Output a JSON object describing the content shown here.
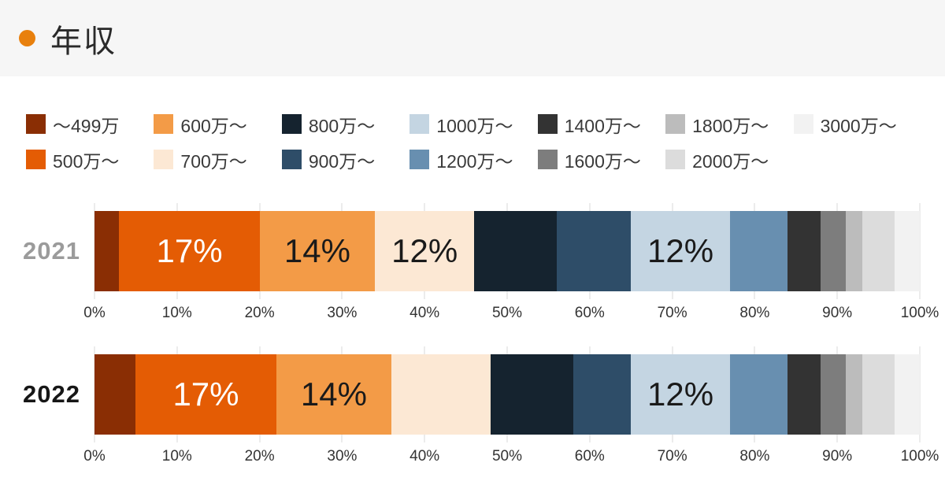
{
  "header": {
    "title": "年収"
  },
  "colors": {
    "accent_dot": "#e8800d",
    "header_bg": "#f6f6f6",
    "page_bg": "#ffffff",
    "gridline": "#ececec",
    "axis_text": "#333333",
    "legend_text": "#3a3a3a",
    "bar_label_dark": "#1a1a1a",
    "bar_label_light": "#ffffff"
  },
  "chart_data": {
    "type": "bar",
    "variant": "stacked-horizontal-percent",
    "title": "年収",
    "legend_position": "top",
    "grid": true,
    "xlim": [
      0,
      100
    ],
    "x_ticks": [
      "0%",
      "10%",
      "20%",
      "30%",
      "40%",
      "50%",
      "60%",
      "70%",
      "80%",
      "90%",
      "100%"
    ],
    "categories": [
      "〜499万",
      "500万〜",
      "600万〜",
      "700万〜",
      "800万〜",
      "900万〜",
      "1000万〜",
      "1200万〜",
      "1400万〜",
      "1600万〜",
      "1800万〜",
      "2000万〜",
      "3000万〜"
    ],
    "colors": [
      "#8a2e04",
      "#e45c04",
      "#f39b47",
      "#fce8d4",
      "#15232f",
      "#2e4d68",
      "#c4d5e2",
      "#688fb0",
      "#333333",
      "#7d7d7d",
      "#bcbcbc",
      "#dcdcdc",
      "#f2f2f2"
    ],
    "series": [
      {
        "name": "2021",
        "name_color": "#9b9b9b",
        "values": [
          3,
          17,
          14,
          12,
          10,
          9,
          12,
          7,
          4,
          3,
          2,
          4,
          3
        ],
        "bar_labels": [
          "",
          "17%",
          "14%",
          "12%",
          "",
          "",
          "12%",
          "",
          "",
          "",
          "",
          "",
          ""
        ]
      },
      {
        "name": "2022",
        "name_color": "#161616",
        "values": [
          5,
          17,
          14,
          12,
          10,
          7,
          12,
          7,
          4,
          3,
          2,
          4,
          3
        ],
        "bar_labels": [
          "",
          "17%",
          "14%",
          "",
          "",
          "",
          "12%",
          "",
          "",
          "",
          "",
          "",
          ""
        ]
      }
    ]
  }
}
